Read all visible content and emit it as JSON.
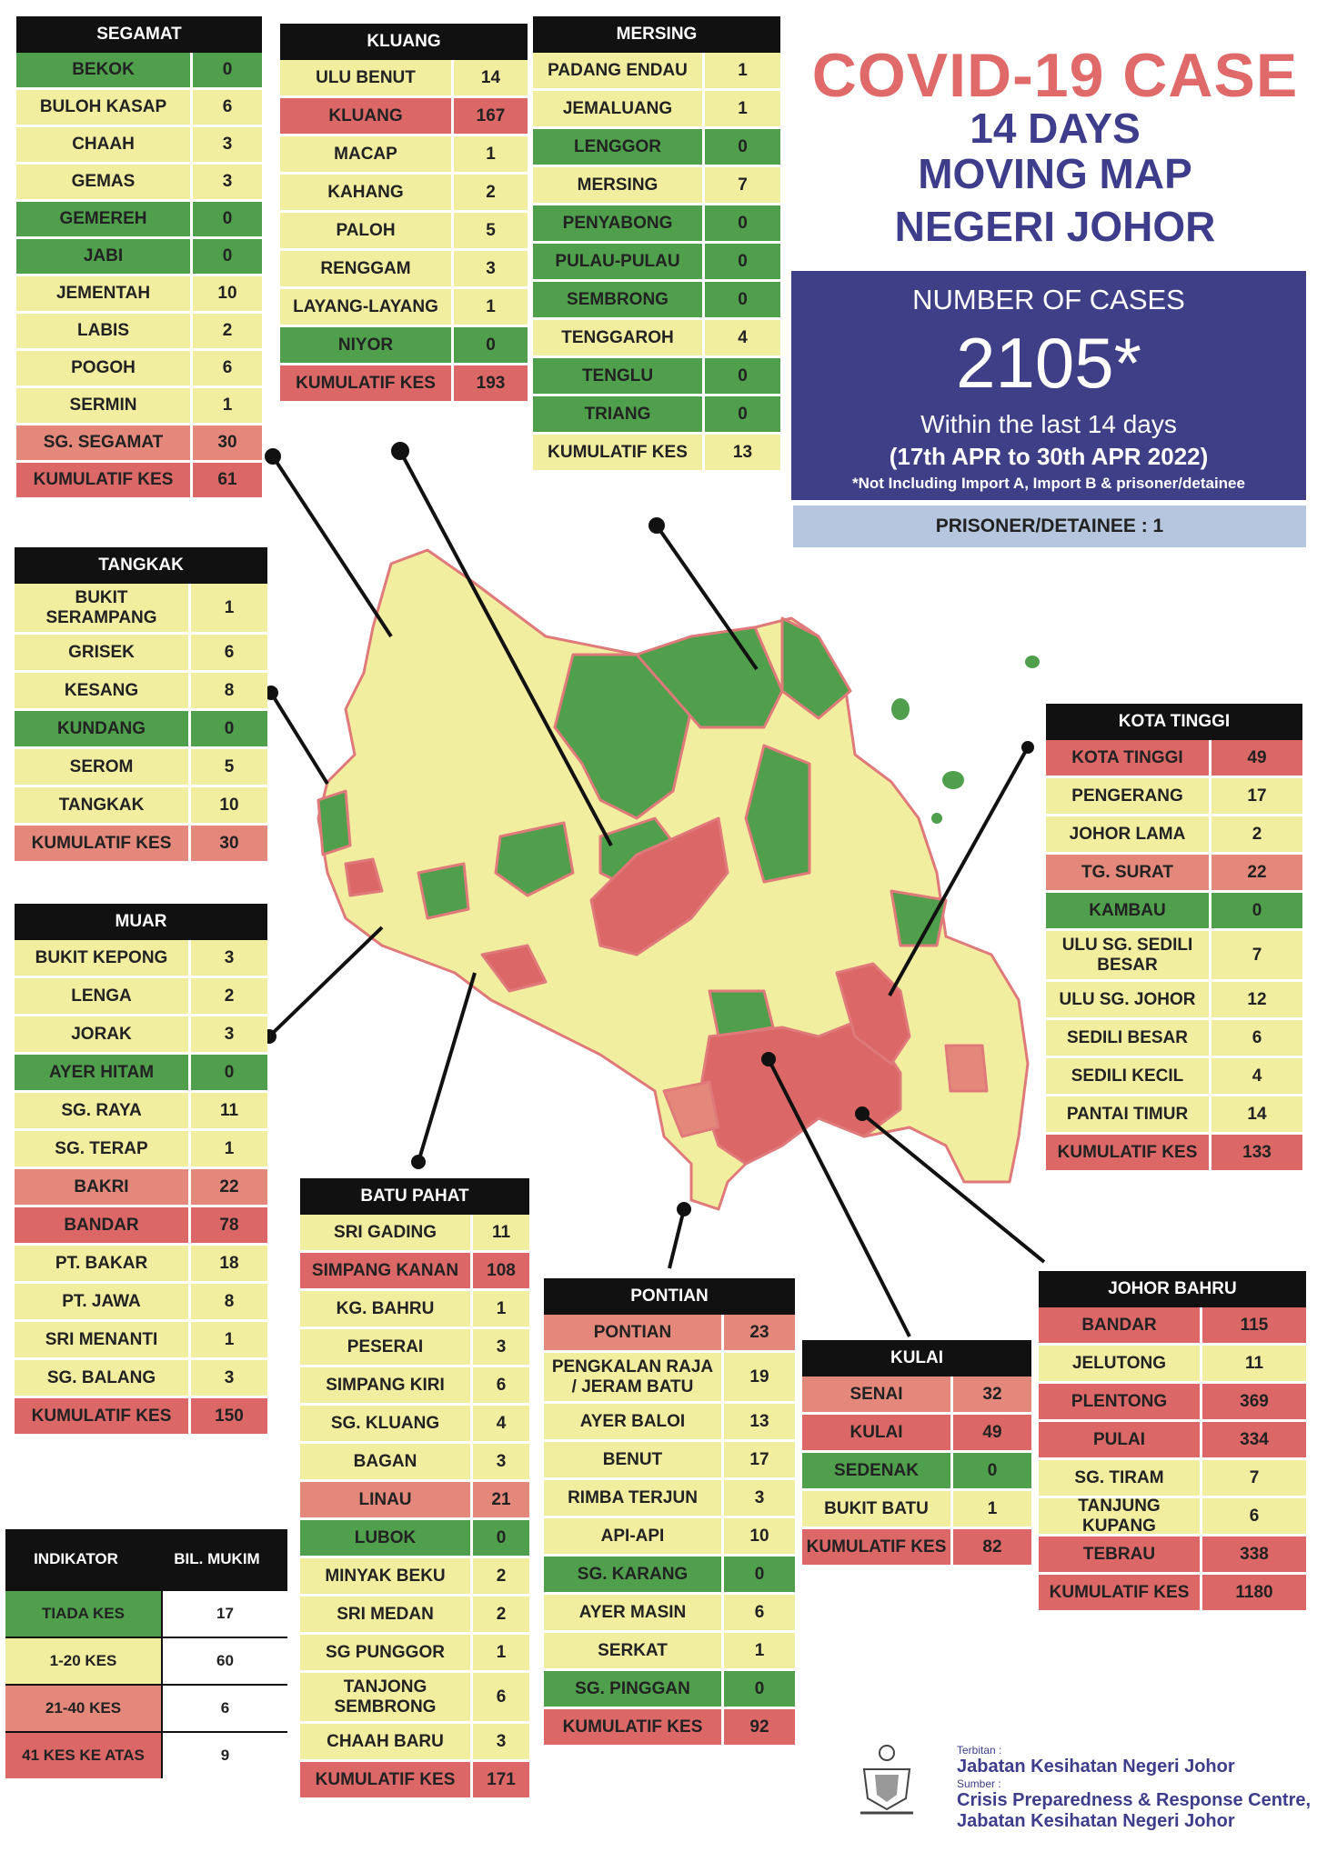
{
  "title": {
    "line1": "COVID-19 CASE",
    "line2": "14 DAYS",
    "line3": "MOVING MAP",
    "line4": "NEGERI JOHOR"
  },
  "summary": {
    "label": "NUMBER OF CASES",
    "total": "2105*",
    "within": "Within the last 14 days",
    "dates": "(17th APR to 30th APR 2022)",
    "note": "*Not Including Import A, Import B & prisoner/detainee",
    "prisoner": "PRISONER/DETAINEE : 1"
  },
  "colors": {
    "tiada_kes": "#4f9f4c",
    "low": "#f2eea0",
    "mid": "#e3887a",
    "high": "#db6767",
    "title_red": "#e06a6a",
    "title_blue": "#3d3d8c"
  },
  "districts": {
    "segamat": {
      "name": "SEGAMAT",
      "rows": [
        {
          "name": "BEKOK",
          "value": "0",
          "level": "none"
        },
        {
          "name": "BULOH KASAP",
          "value": "6",
          "level": "low"
        },
        {
          "name": "CHAAH",
          "value": "3",
          "level": "low"
        },
        {
          "name": "GEMAS",
          "value": "3",
          "level": "low"
        },
        {
          "name": "GEMEREH",
          "value": "0",
          "level": "none"
        },
        {
          "name": "JABI",
          "value": "0",
          "level": "none"
        },
        {
          "name": "JEMENTAH",
          "value": "10",
          "level": "low"
        },
        {
          "name": "LABIS",
          "value": "2",
          "level": "low"
        },
        {
          "name": "POGOH",
          "value": "6",
          "level": "low"
        },
        {
          "name": "SERMIN",
          "value": "1",
          "level": "low"
        },
        {
          "name": "SG. SEGAMAT",
          "value": "30",
          "level": "mid"
        },
        {
          "name": "KUMULATIF KES",
          "value": "61",
          "level": "high"
        }
      ]
    },
    "kluang": {
      "name": "KLUANG",
      "rows": [
        {
          "name": "ULU BENUT",
          "value": "14",
          "level": "low"
        },
        {
          "name": "KLUANG",
          "value": "167",
          "level": "high"
        },
        {
          "name": "MACAP",
          "value": "1",
          "level": "low"
        },
        {
          "name": "KAHANG",
          "value": "2",
          "level": "low"
        },
        {
          "name": "PALOH",
          "value": "5",
          "level": "low"
        },
        {
          "name": "RENGGAM",
          "value": "3",
          "level": "low"
        },
        {
          "name": "LAYANG-LAYANG",
          "value": "1",
          "level": "low"
        },
        {
          "name": "NIYOR",
          "value": "0",
          "level": "none"
        },
        {
          "name": "KUMULATIF KES",
          "value": "193",
          "level": "high"
        }
      ]
    },
    "mersing": {
      "name": "MERSING",
      "rows": [
        {
          "name": "PADANG ENDAU",
          "value": "1",
          "level": "low"
        },
        {
          "name": "JEMALUANG",
          "value": "1",
          "level": "low"
        },
        {
          "name": "LENGGOR",
          "value": "0",
          "level": "none"
        },
        {
          "name": "MERSING",
          "value": "7",
          "level": "low"
        },
        {
          "name": "PENYABONG",
          "value": "0",
          "level": "none"
        },
        {
          "name": "PULAU-PULAU",
          "value": "0",
          "level": "none"
        },
        {
          "name": "SEMBRONG",
          "value": "0",
          "level": "none"
        },
        {
          "name": "TENGGAROH",
          "value": "4",
          "level": "low"
        },
        {
          "name": "TENGLU",
          "value": "0",
          "level": "none"
        },
        {
          "name": "TRIANG",
          "value": "0",
          "level": "none"
        },
        {
          "name": "KUMULATIF KES",
          "value": "13",
          "level": "low"
        }
      ]
    },
    "tangkak": {
      "name": "TANGKAK",
      "rows": [
        {
          "name": "BUKIT SERAMPANG",
          "value": "1",
          "level": "low"
        },
        {
          "name": "GRISEK",
          "value": "6",
          "level": "low"
        },
        {
          "name": "KESANG",
          "value": "8",
          "level": "low"
        },
        {
          "name": "KUNDANG",
          "value": "0",
          "level": "none"
        },
        {
          "name": "SEROM",
          "value": "5",
          "level": "low"
        },
        {
          "name": "TANGKAK",
          "value": "10",
          "level": "low"
        },
        {
          "name": "KUMULATIF KES",
          "value": "30",
          "level": "mid"
        }
      ]
    },
    "muar": {
      "name": "MUAR",
      "rows": [
        {
          "name": "BUKIT KEPONG",
          "value": "3",
          "level": "low"
        },
        {
          "name": "LENGA",
          "value": "2",
          "level": "low"
        },
        {
          "name": "JORAK",
          "value": "3",
          "level": "low"
        },
        {
          "name": "AYER HITAM",
          "value": "0",
          "level": "none"
        },
        {
          "name": "SG. RAYA",
          "value": "11",
          "level": "low"
        },
        {
          "name": "SG. TERAP",
          "value": "1",
          "level": "low"
        },
        {
          "name": "BAKRI",
          "value": "22",
          "level": "mid"
        },
        {
          "name": "BANDAR",
          "value": "78",
          "level": "high"
        },
        {
          "name": "PT. BAKAR",
          "value": "18",
          "level": "low"
        },
        {
          "name": "PT. JAWA",
          "value": "8",
          "level": "low"
        },
        {
          "name": "SRI MENANTI",
          "value": "1",
          "level": "low"
        },
        {
          "name": "SG. BALANG",
          "value": "3",
          "level": "low"
        },
        {
          "name": "KUMULATIF KES",
          "value": "150",
          "level": "high"
        }
      ]
    },
    "batupahat": {
      "name": "BATU PAHAT",
      "rows": [
        {
          "name": "SRI GADING",
          "value": "11",
          "level": "low"
        },
        {
          "name": "SIMPANG KANAN",
          "value": "108",
          "level": "high"
        },
        {
          "name": "KG. BAHRU",
          "value": "1",
          "level": "low"
        },
        {
          "name": "PESERAI",
          "value": "3",
          "level": "low"
        },
        {
          "name": "SIMPANG KIRI",
          "value": "6",
          "level": "low"
        },
        {
          "name": "SG. KLUANG",
          "value": "4",
          "level": "low"
        },
        {
          "name": "BAGAN",
          "value": "3",
          "level": "low"
        },
        {
          "name": "LINAU",
          "value": "21",
          "level": "mid"
        },
        {
          "name": "LUBOK",
          "value": "0",
          "level": "none"
        },
        {
          "name": "MINYAK BEKU",
          "value": "2",
          "level": "low"
        },
        {
          "name": "SRI MEDAN",
          "value": "2",
          "level": "low"
        },
        {
          "name": "SG PUNGGOR",
          "value": "1",
          "level": "low"
        },
        {
          "name": "TANJONG SEMBRONG",
          "value": "6",
          "level": "low"
        },
        {
          "name": "CHAAH BARU",
          "value": "3",
          "level": "low"
        },
        {
          "name": "KUMULATIF KES",
          "value": "171",
          "level": "high"
        }
      ]
    },
    "pontian": {
      "name": "PONTIAN",
      "rows": [
        {
          "name": "PONTIAN",
          "value": "23",
          "level": "mid"
        },
        {
          "name": "PENGKALAN RAJA / JERAM BATU",
          "value": "19",
          "level": "low"
        },
        {
          "name": "AYER BALOI",
          "value": "13",
          "level": "low"
        },
        {
          "name": "BENUT",
          "value": "17",
          "level": "low"
        },
        {
          "name": "RIMBA TERJUN",
          "value": "3",
          "level": "low"
        },
        {
          "name": "API-API",
          "value": "10",
          "level": "low"
        },
        {
          "name": "SG. KARANG",
          "value": "0",
          "level": "none"
        },
        {
          "name": "AYER MASIN",
          "value": "6",
          "level": "low"
        },
        {
          "name": "SERKAT",
          "value": "1",
          "level": "low"
        },
        {
          "name": "SG. PINGGAN",
          "value": "0",
          "level": "none"
        },
        {
          "name": "KUMULATIF KES",
          "value": "92",
          "level": "high"
        }
      ]
    },
    "kulai": {
      "name": "KULAI",
      "rows": [
        {
          "name": "SENAI",
          "value": "32",
          "level": "mid"
        },
        {
          "name": "KULAI",
          "value": "49",
          "level": "high"
        },
        {
          "name": "SEDENAK",
          "value": "0",
          "level": "none"
        },
        {
          "name": "BUKIT BATU",
          "value": "1",
          "level": "low"
        },
        {
          "name": "KUMULATIF KES",
          "value": "82",
          "level": "high"
        }
      ]
    },
    "kotatinggi": {
      "name": "KOTA TINGGI",
      "rows": [
        {
          "name": "KOTA TINGGI",
          "value": "49",
          "level": "high"
        },
        {
          "name": "PENGERANG",
          "value": "17",
          "level": "low"
        },
        {
          "name": "JOHOR LAMA",
          "value": "2",
          "level": "low"
        },
        {
          "name": "TG. SURAT",
          "value": "22",
          "level": "mid"
        },
        {
          "name": "KAMBAU",
          "value": "0",
          "level": "none"
        },
        {
          "name": "ULU SG. SEDILI BESAR",
          "value": "7",
          "level": "low"
        },
        {
          "name": "ULU SG. JOHOR",
          "value": "12",
          "level": "low"
        },
        {
          "name": "SEDILI BESAR",
          "value": "6",
          "level": "low"
        },
        {
          "name": "SEDILI KECIL",
          "value": "4",
          "level": "low"
        },
        {
          "name": "PANTAI TIMUR",
          "value": "14",
          "level": "low"
        },
        {
          "name": "KUMULATIF KES",
          "value": "133",
          "level": "high"
        }
      ]
    },
    "johorbahru": {
      "name": "JOHOR BAHRU",
      "rows": [
        {
          "name": "BANDAR",
          "value": "115",
          "level": "high"
        },
        {
          "name": "JELUTONG",
          "value": "11",
          "level": "low"
        },
        {
          "name": "PLENTONG",
          "value": "369",
          "level": "high"
        },
        {
          "name": "PULAI",
          "value": "334",
          "level": "high"
        },
        {
          "name": "SG. TIRAM",
          "value": "7",
          "level": "low"
        },
        {
          "name": "TANJUNG KUPANG",
          "value": "6",
          "level": "low"
        },
        {
          "name": "TEBRAU",
          "value": "338",
          "level": "high"
        },
        {
          "name": "KUMULATIF KES",
          "value": "1180",
          "level": "high"
        }
      ]
    }
  },
  "legend": {
    "header_a": "INDIKATOR",
    "header_b": "BIL. MUKIM",
    "rows": [
      {
        "label": "TIADA KES",
        "count": "17",
        "level": "none"
      },
      {
        "label": "1-20 KES",
        "count": "60",
        "level": "low"
      },
      {
        "label": "21-40 KES",
        "count": "6",
        "level": "mid"
      },
      {
        "label": "41 KES KE ATAS",
        "count": "9",
        "level": "high"
      }
    ]
  },
  "credit": {
    "terbitan_label": "Terbitan :",
    "terbitan": "Jabatan Kesihatan Negeri Johor",
    "sumber_label": "Sumber :",
    "sumber1": "Crisis Preparedness & Response Centre,",
    "sumber2": "Jabatan Kesihatan Negeri Johor"
  }
}
